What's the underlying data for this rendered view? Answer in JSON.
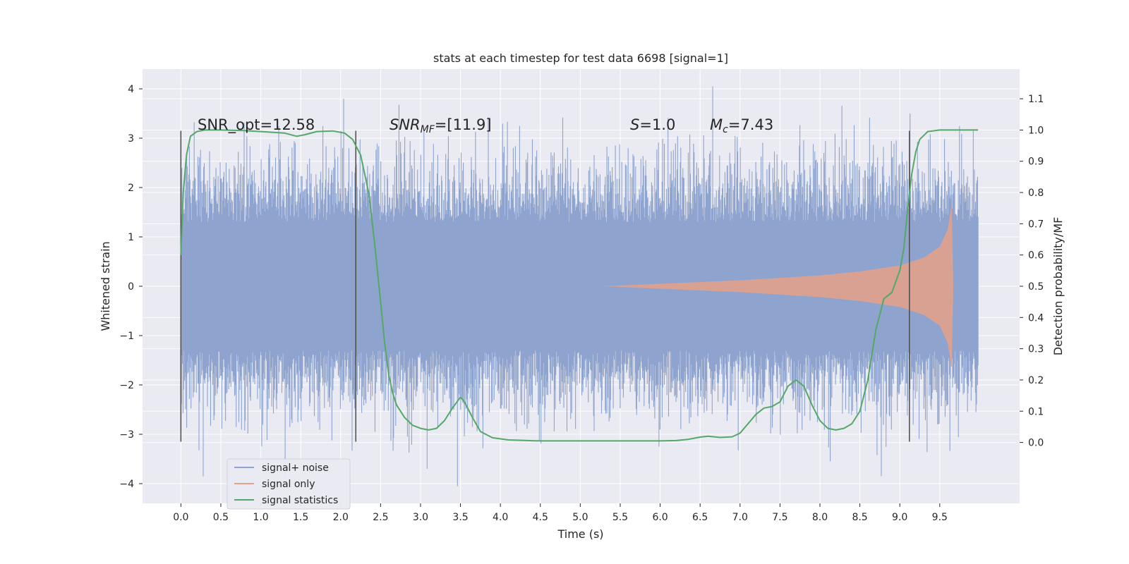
{
  "chart_data": {
    "type": "line",
    "title": "stats at each timestep for test data 6698 [signal=1]",
    "xlabel": "Time (s)",
    "ylabel": "Whitened strain",
    "ylabel_right": "Detection probability/MF",
    "xlim": [
      -0.48,
      10.5
    ],
    "ylim": [
      -4.4,
      4.4
    ],
    "ylim_right": [
      -0.195,
      1.195
    ],
    "x_ticks": [
      "0.0",
      "0.5",
      "1.0",
      "1.5",
      "2.0",
      "2.5",
      "3.0",
      "3.5",
      "4.0",
      "4.5",
      "5.0",
      "5.5",
      "6.0",
      "6.5",
      "7.0",
      "7.5",
      "8.0",
      "8.5",
      "9.0",
      "9.5"
    ],
    "x_tick_values": [
      0.0,
      0.5,
      1.0,
      1.5,
      2.0,
      2.5,
      3.0,
      3.5,
      4.0,
      4.5,
      5.0,
      5.5,
      6.0,
      6.5,
      7.0,
      7.5,
      8.0,
      8.5,
      9.0,
      9.5
    ],
    "y_ticks": [
      "−4",
      "−3",
      "−2",
      "−1",
      "0",
      "1",
      "2",
      "3",
      "4"
    ],
    "y_tick_values": [
      -4,
      -3,
      -2,
      -1,
      0,
      1,
      2,
      3,
      4
    ],
    "y_ticks_right": [
      "0.0",
      "0.1",
      "0.2",
      "0.3",
      "0.4",
      "0.5",
      "0.6",
      "0.7",
      "0.8",
      "0.9",
      "1.0",
      "1.1"
    ],
    "y_tick_values_right": [
      0.0,
      0.1,
      0.2,
      0.3,
      0.4,
      0.5,
      0.6,
      0.7,
      0.8,
      0.9,
      1.0,
      1.1
    ],
    "grid": true,
    "legend_position": "bottom-left",
    "legend": [
      "signal+ noise",
      "signal only",
      "signal statistics"
    ],
    "annotations": {
      "snr_opt": "SNR_opt=12.58",
      "snr_mf_main": "SNR",
      "snr_mf_sub": "MF",
      "snr_mf_value": "=[11.9]",
      "s_main": "S",
      "s_value": "=1.0",
      "mc_main": "M",
      "mc_sub": "c",
      "mc_value": "=7.43"
    },
    "vertical_markers_x": [
      0.0,
      2.19,
      9.12
    ],
    "vertical_markers_range": [
      -3.15,
      3.15
    ],
    "noise_series": {
      "name": "signal+ noise",
      "x_range": [
        0.0,
        9.98
      ],
      "typical_amplitude": 1.3,
      "peak_max": 4.05,
      "peak_min": -4.05
    },
    "signal_series": {
      "name": "signal only",
      "envelope": [
        {
          "x": 5.3,
          "a": 0.0
        },
        {
          "x": 6.0,
          "a": 0.05
        },
        {
          "x": 7.0,
          "a": 0.12
        },
        {
          "x": 8.0,
          "a": 0.22
        },
        {
          "x": 8.5,
          "a": 0.3
        },
        {
          "x": 9.0,
          "a": 0.42
        },
        {
          "x": 9.3,
          "a": 0.58
        },
        {
          "x": 9.5,
          "a": 0.8
        },
        {
          "x": 9.6,
          "a": 1.15
        },
        {
          "x": 9.65,
          "a": 1.65
        },
        {
          "x": 9.67,
          "a": 0.0
        }
      ]
    },
    "statistics_series": {
      "name": "signal statistics",
      "x": [
        0.0,
        0.03,
        0.07,
        0.12,
        0.2,
        0.3,
        0.5,
        0.8,
        1.0,
        1.3,
        1.45,
        1.55,
        1.7,
        1.9,
        2.05,
        2.15,
        2.25,
        2.35,
        2.42,
        2.5,
        2.55,
        2.6,
        2.65,
        2.7,
        2.8,
        2.9,
        3.0,
        3.1,
        3.2,
        3.3,
        3.4,
        3.5,
        3.55,
        3.65,
        3.75,
        3.9,
        4.1,
        4.5,
        5.0,
        6.0,
        6.2,
        6.35,
        6.5,
        6.6,
        6.75,
        6.9,
        7.0,
        7.1,
        7.2,
        7.3,
        7.4,
        7.5,
        7.6,
        7.7,
        7.8,
        7.9,
        8.0,
        8.1,
        8.2,
        8.3,
        8.4,
        8.5,
        8.6,
        8.7,
        8.8,
        8.9,
        9.0,
        9.05,
        9.1,
        9.15,
        9.2,
        9.25,
        9.35,
        9.5,
        9.7,
        9.98
      ],
      "y": [
        0.6,
        0.8,
        0.92,
        0.98,
        0.995,
        1.0,
        1.0,
        0.998,
        0.995,
        0.99,
        0.98,
        0.985,
        0.995,
        0.997,
        0.99,
        0.97,
        0.92,
        0.8,
        0.65,
        0.45,
        0.32,
        0.22,
        0.16,
        0.12,
        0.08,
        0.055,
        0.045,
        0.04,
        0.045,
        0.07,
        0.11,
        0.145,
        0.13,
        0.08,
        0.035,
        0.015,
        0.008,
        0.005,
        0.005,
        0.005,
        0.006,
        0.01,
        0.017,
        0.02,
        0.016,
        0.018,
        0.03,
        0.06,
        0.09,
        0.11,
        0.115,
        0.13,
        0.18,
        0.2,
        0.18,
        0.12,
        0.07,
        0.045,
        0.04,
        0.045,
        0.06,
        0.1,
        0.2,
        0.36,
        0.46,
        0.48,
        0.55,
        0.62,
        0.75,
        0.86,
        0.93,
        0.97,
        0.995,
        1.0,
        1.0,
        1.0
      ]
    },
    "colors": {
      "noise": "#8ea4cf",
      "signal": "#e6a186",
      "statistics": "#55a868",
      "marker": "#4c4c4c",
      "background": "#eaeaf2",
      "grid": "#ffffff"
    }
  }
}
